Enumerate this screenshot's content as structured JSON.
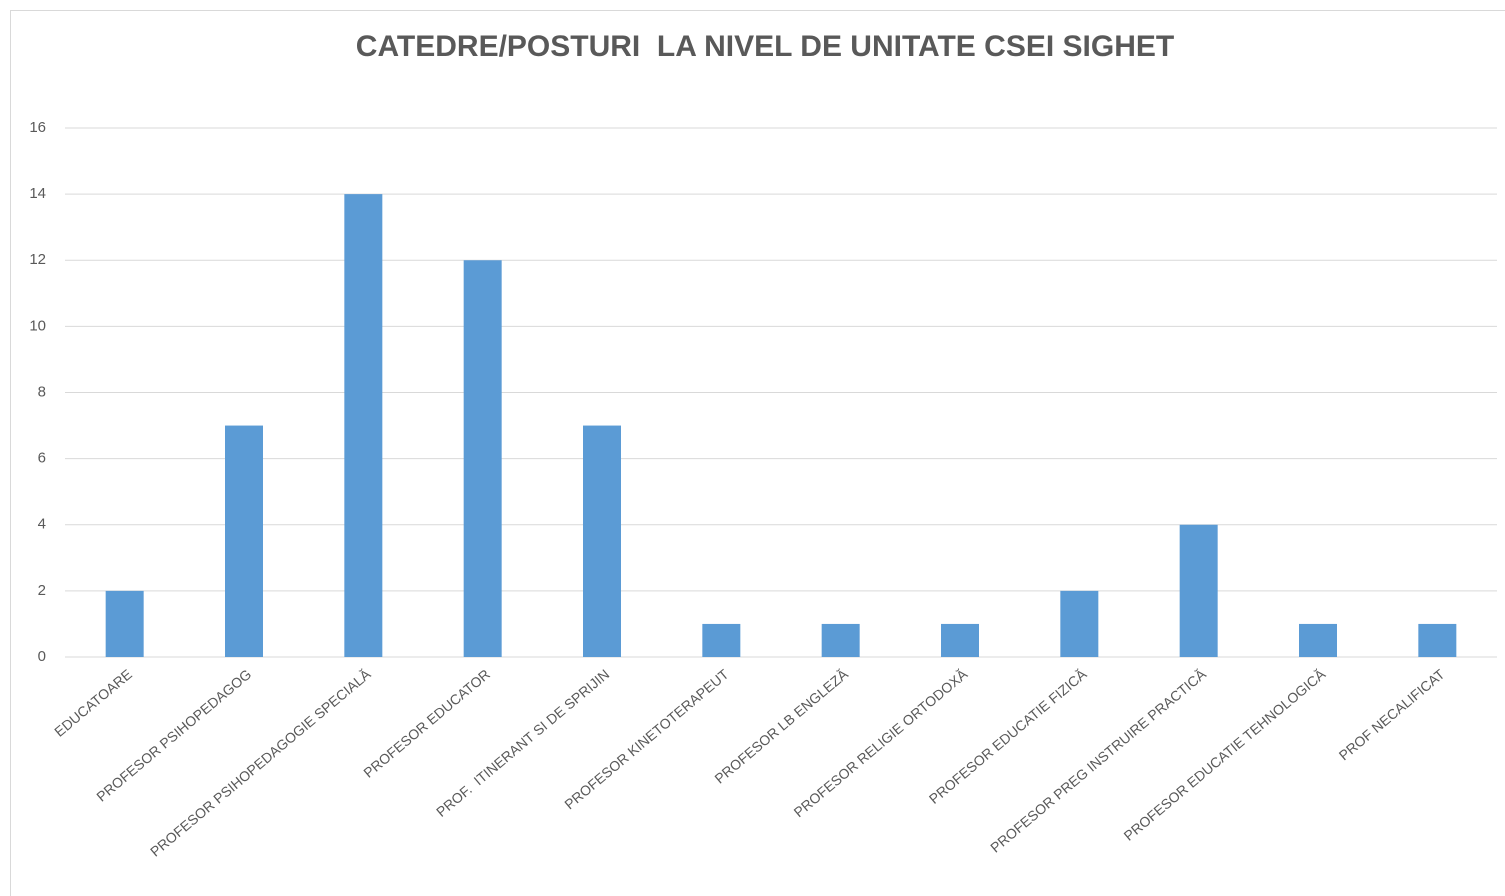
{
  "chart_data": {
    "type": "bar",
    "title": "CATEDRE/POSTURI  LA NIVEL DE UNITATE CSEI SIGHET",
    "categories": [
      "EDUCATOARE",
      "PROFESOR PSIHOPEDAGOG",
      "PROFESOR PSIHOPEDAGOGIE SPECIALĂ",
      "PROFESOR EDUCATOR",
      "PROF.  ITINERANT SI DE SPRIJIN",
      "PROFESOR KINETOTERAPEUT",
      "PROFESOR LB ENGLEZĂ",
      "PROFESOR RELIGIE ORTODOXĂ",
      "PROFESOR EDUCATIE FIZICĂ",
      "PROFESOR PREG INSTRUIRE PRACTICĂ",
      "PROFESOR EDUCATIE TEHNOLOGICĂ",
      "PROF NECALIFICAT"
    ],
    "values": [
      2,
      7,
      14,
      12,
      7,
      1,
      1,
      1,
      2,
      4,
      1,
      1
    ],
    "color": "#5b9bd5",
    "ylim": [
      0,
      16
    ],
    "yticks": [
      0,
      2,
      4,
      6,
      8,
      10,
      12,
      14,
      16
    ],
    "grid": true
  }
}
